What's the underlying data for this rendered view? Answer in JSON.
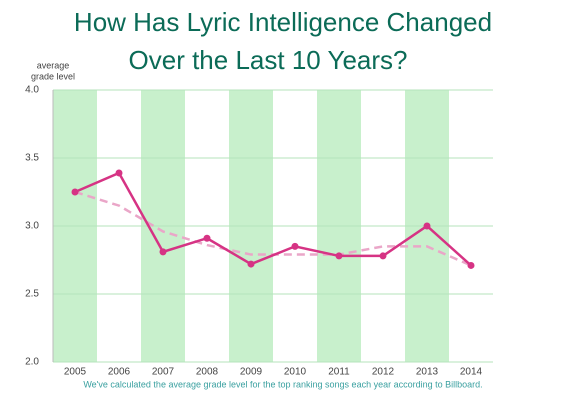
{
  "chart_data": {
    "type": "line",
    "title": [
      "How Has Lyric Intelligence Changed",
      "Over the Last 10 Years?"
    ],
    "y_label": [
      "average",
      "grade level"
    ],
    "caption": "We've calculated the average grade level for the top ranking songs each year according to Billboard.",
    "categories": [
      "2005",
      "2006",
      "2007",
      "2008",
      "2009",
      "2010",
      "2011",
      "2012",
      "2013",
      "2014"
    ],
    "series": [
      {
        "color": "#d63384",
        "style": "solid",
        "markers": true,
        "values": [
          3.25,
          3.39,
          2.81,
          2.91,
          2.72,
          2.85,
          2.78,
          2.78,
          3.0,
          2.71
        ]
      },
      {
        "color": "#eaa6c8",
        "style": "dashed",
        "markers": false,
        "values": [
          3.25,
          3.15,
          2.96,
          2.86,
          2.79,
          2.79,
          2.79,
          2.85,
          2.85,
          2.71
        ]
      }
    ],
    "ylim": [
      2,
      4
    ],
    "yticks": [
      {
        "value": 2,
        "label": "2.0"
      },
      {
        "value": 2.5,
        "label": "2.5"
      },
      {
        "value": 3,
        "label": "3.0"
      },
      {
        "value": 3.5,
        "label": "3.5"
      },
      {
        "value": 4,
        "label": "4.0"
      }
    ],
    "grid": true,
    "alternate_bands": true,
    "band_color": "#c8f0cc",
    "title_color": "#0b6b57"
  }
}
